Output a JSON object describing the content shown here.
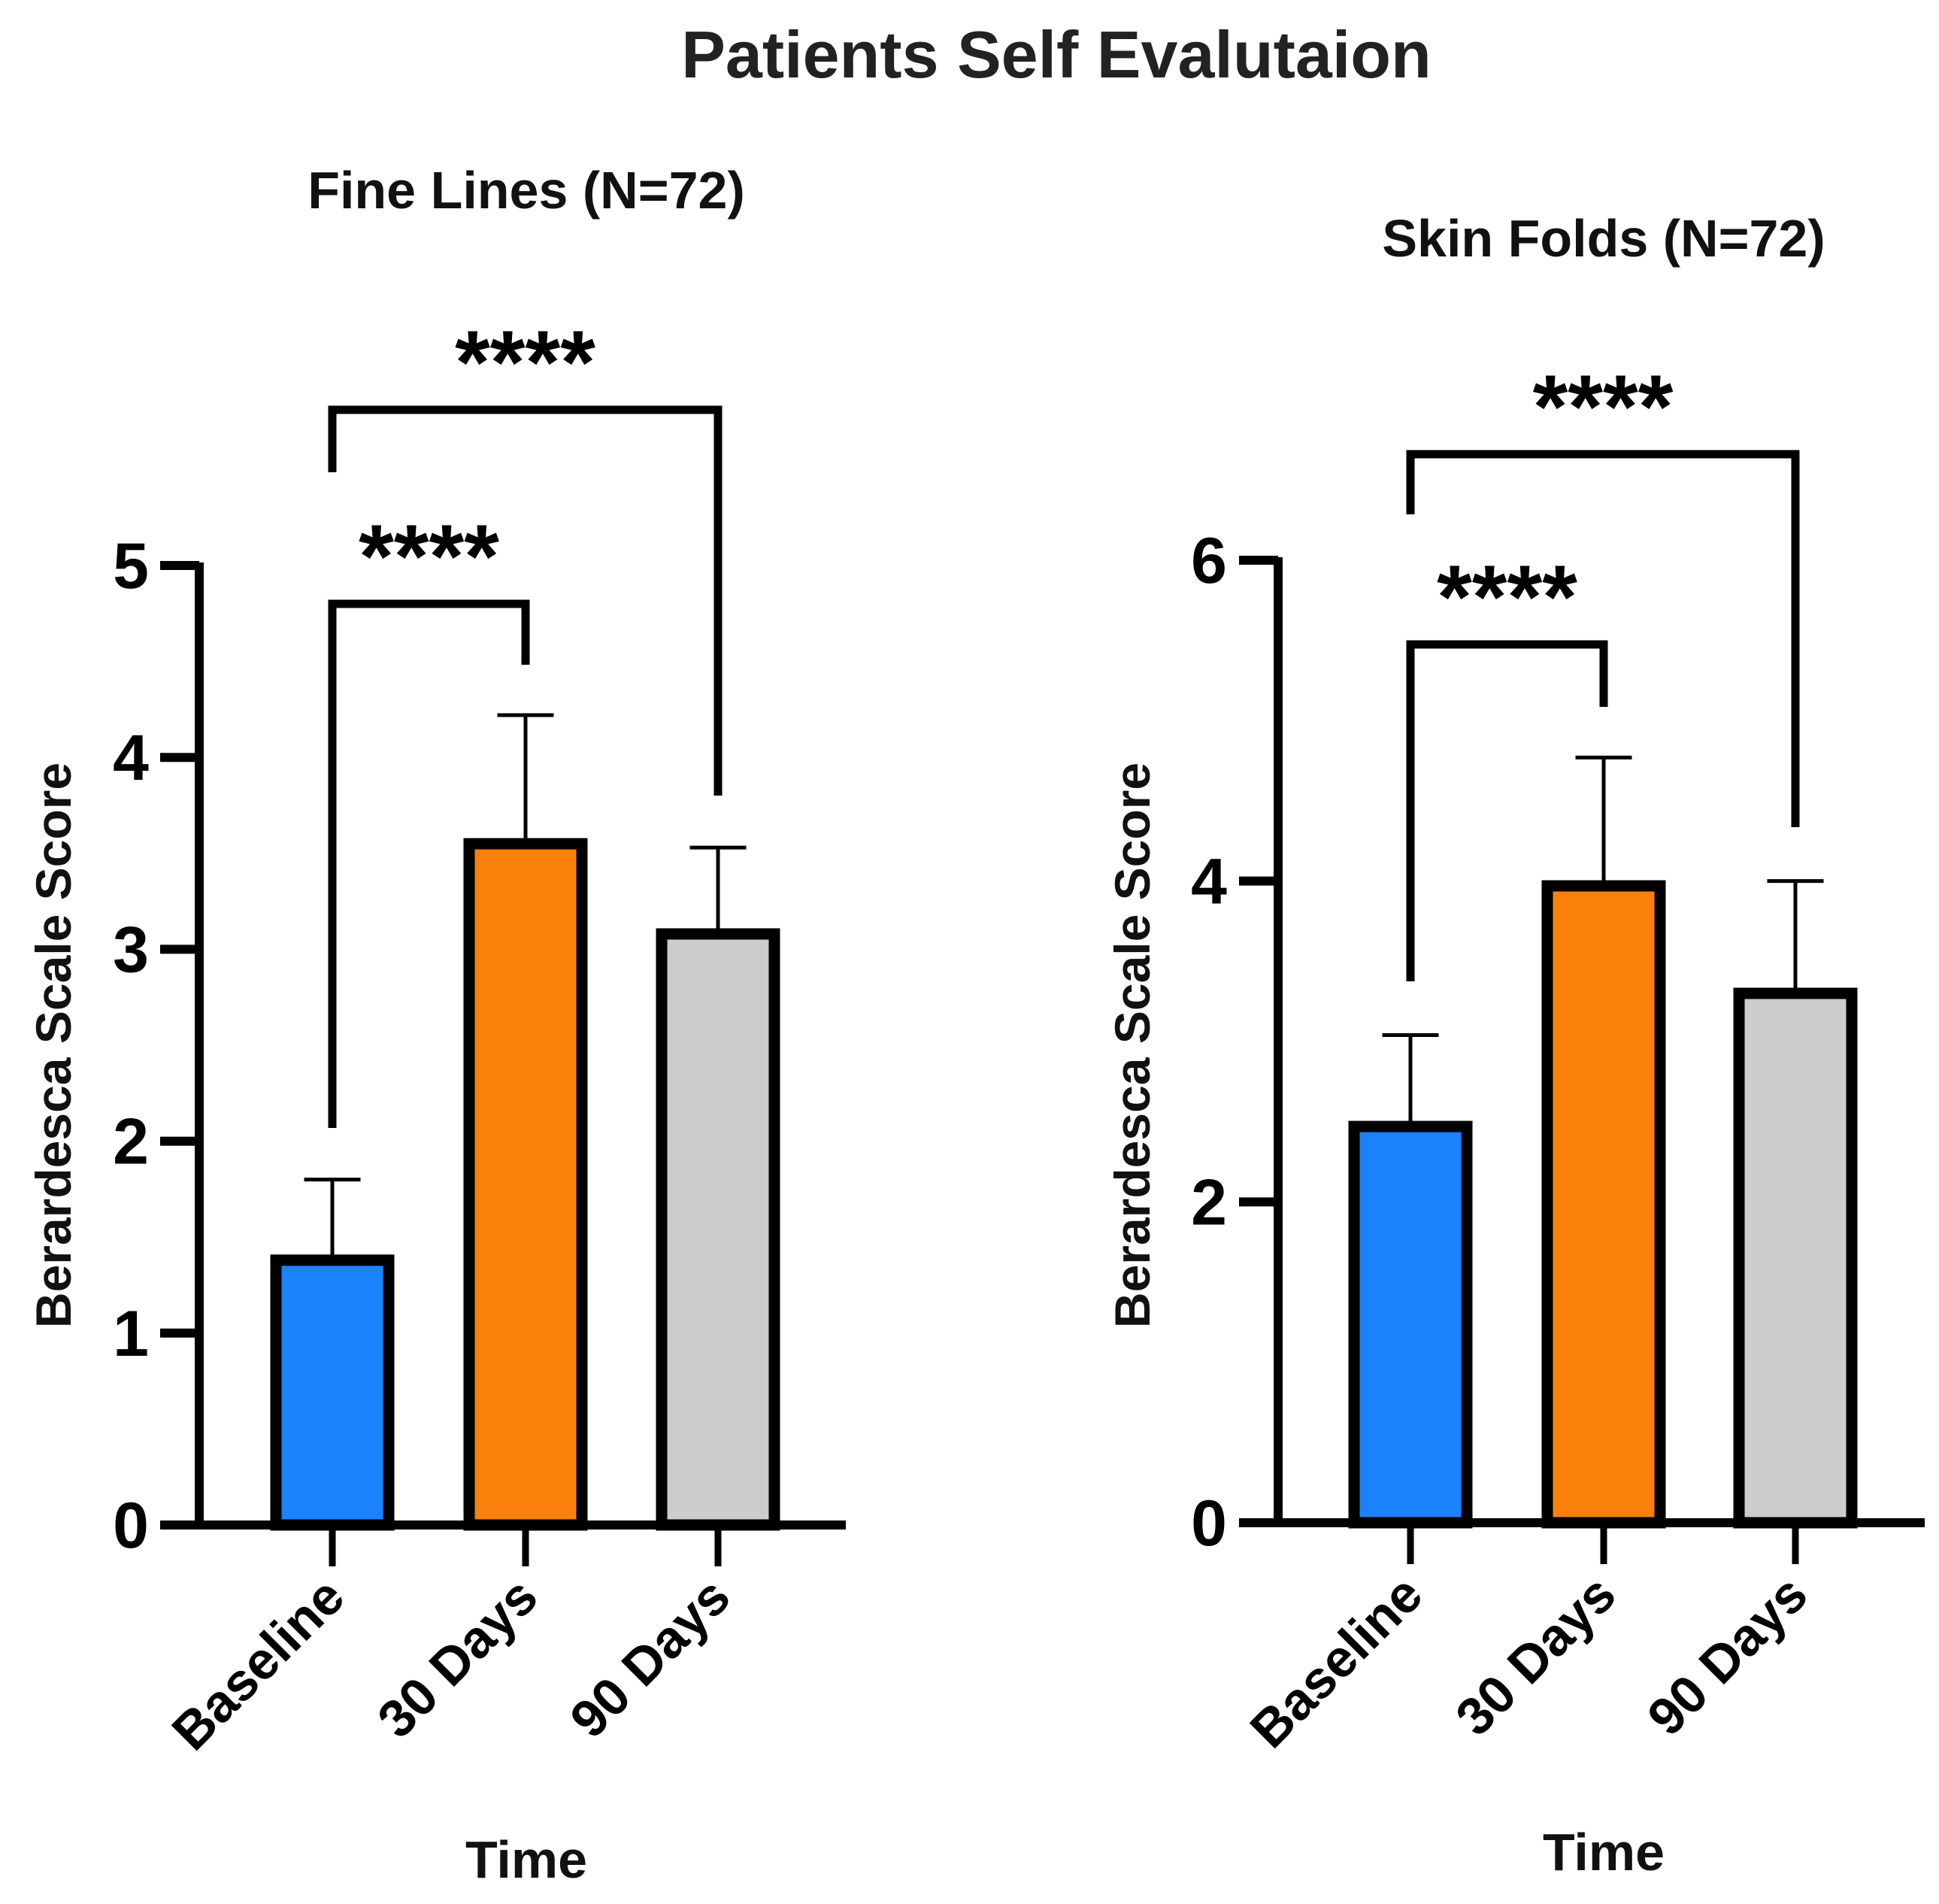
{
  "figure_title": "Patients Self Evalutaion",
  "chart_data": [
    {
      "type": "bar",
      "title": "Fine Lines (N=72)",
      "xlabel": "Time",
      "ylabel": "Berardesca Scale Score",
      "categories": [
        "Baseline",
        "30 Days",
        "90 Days"
      ],
      "values": [
        1.38,
        3.55,
        3.08
      ],
      "errors": [
        0.42,
        0.67,
        0.45
      ],
      "colors": [
        "#1a82fa",
        "#fa800c",
        "#cccccc"
      ],
      "ylim": [
        0,
        5
      ],
      "yticks": [
        0,
        1,
        2,
        3,
        4,
        5
      ],
      "ytick_labels": [
        "0",
        "1",
        "2",
        "3",
        "4",
        "5"
      ],
      "significance": [
        {
          "from": "Baseline",
          "to": "30 Days",
          "label": "****"
        },
        {
          "from": "Baseline",
          "to": "90 Days",
          "label": "****"
        }
      ]
    },
    {
      "type": "bar",
      "title": "Skin Folds (N=72)",
      "xlabel": "Time",
      "ylabel": "Berardesca Scale Score",
      "categories": [
        "Baseline",
        "30 Days",
        "90 Days"
      ],
      "values": [
        2.47,
        3.97,
        3.3
      ],
      "errors": [
        0.57,
        0.8,
        0.7
      ],
      "colors": [
        "#1a82fa",
        "#fa800c",
        "#cccccc"
      ],
      "ylim": [
        0,
        6
      ],
      "yticks": [
        0,
        2,
        4,
        6
      ],
      "ytick_labels": [
        "0",
        "2",
        "4",
        "6"
      ],
      "significance": [
        {
          "from": "Baseline",
          "to": "30 Days",
          "label": "****"
        },
        {
          "from": "Baseline",
          "to": "90 Days",
          "label": "****"
        }
      ]
    }
  ]
}
